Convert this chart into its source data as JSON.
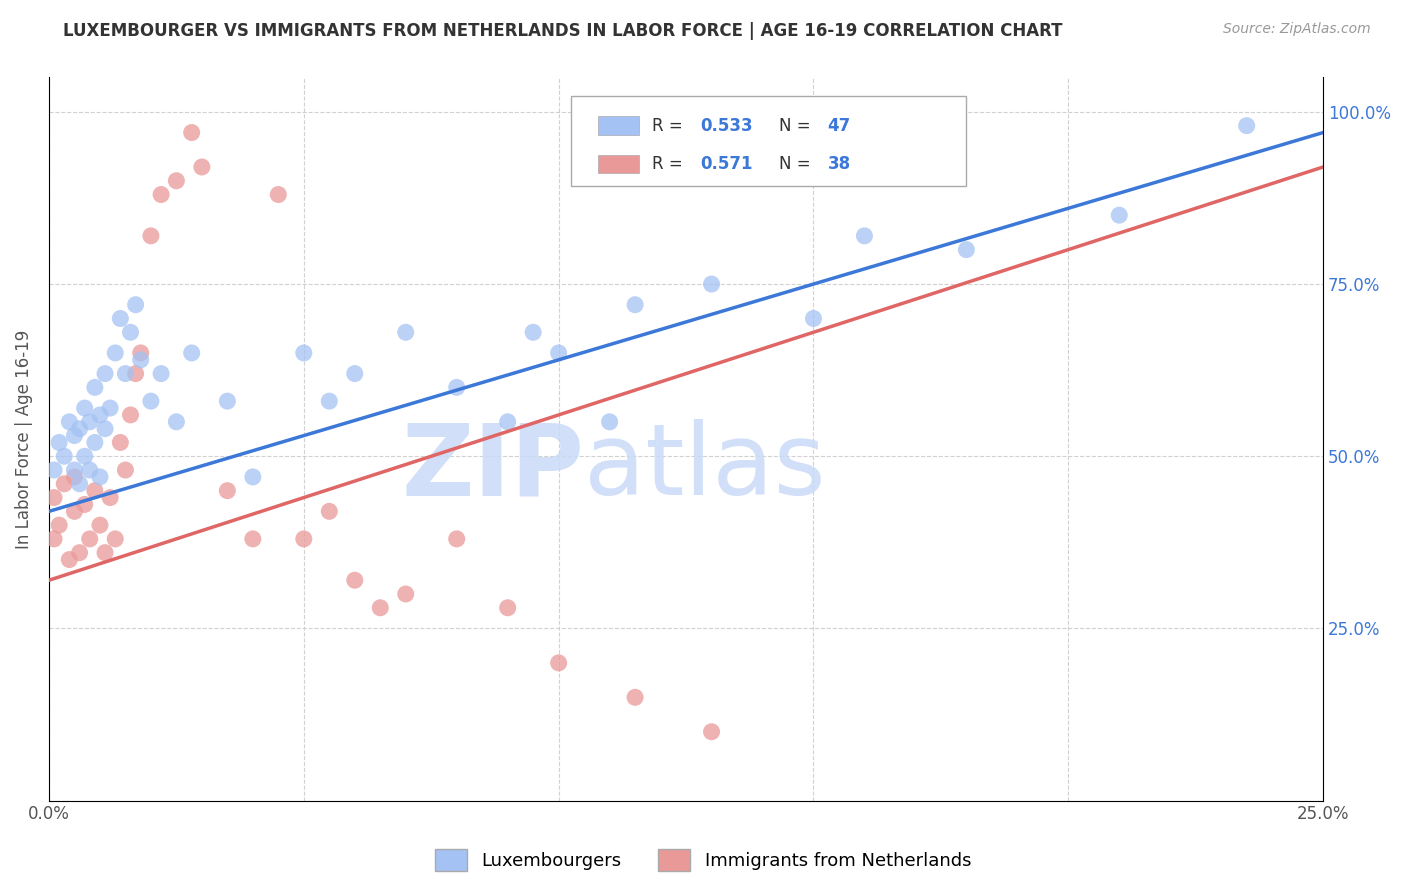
{
  "title": "LUXEMBOURGER VS IMMIGRANTS FROM NETHERLANDS IN LABOR FORCE | AGE 16-19 CORRELATION CHART",
  "source_text": "Source: ZipAtlas.com",
  "ylabel": "In Labor Force | Age 16-19",
  "xlim": [
    0.0,
    0.25
  ],
  "ylim": [
    0.0,
    1.05
  ],
  "blue_color": "#a4c2f4",
  "pink_color": "#ea9999",
  "blue_line_color": "#3c78d8",
  "pink_line_color": "#e06666",
  "legend_blue_r": "0.533",
  "legend_blue_n": "47",
  "legend_pink_r": "0.571",
  "legend_pink_n": "38",
  "r_value_color": "#3c78d8",
  "n_value_color": "#cc0000",
  "watermark_zip": "ZIP",
  "watermark_atlas": "atlas",
  "watermark_color": "#c9daf8",
  "watermark_atlas_color": "#b6d7a8",
  "blue_scatter_x": [
    0.001,
    0.002,
    0.003,
    0.004,
    0.005,
    0.005,
    0.006,
    0.006,
    0.007,
    0.007,
    0.008,
    0.008,
    0.009,
    0.009,
    0.01,
    0.01,
    0.011,
    0.011,
    0.012,
    0.013,
    0.014,
    0.015,
    0.016,
    0.017,
    0.018,
    0.02,
    0.022,
    0.025,
    0.028,
    0.035,
    0.04,
    0.05,
    0.055,
    0.06,
    0.07,
    0.08,
    0.09,
    0.095,
    0.1,
    0.11,
    0.115,
    0.13,
    0.15,
    0.16,
    0.18,
    0.21,
    0.235
  ],
  "blue_scatter_y": [
    0.48,
    0.52,
    0.5,
    0.55,
    0.48,
    0.53,
    0.46,
    0.54,
    0.5,
    0.57,
    0.48,
    0.55,
    0.52,
    0.6,
    0.47,
    0.56,
    0.54,
    0.62,
    0.57,
    0.65,
    0.7,
    0.62,
    0.68,
    0.72,
    0.64,
    0.58,
    0.62,
    0.55,
    0.65,
    0.58,
    0.47,
    0.65,
    0.58,
    0.62,
    0.68,
    0.6,
    0.55,
    0.68,
    0.65,
    0.55,
    0.72,
    0.75,
    0.7,
    0.82,
    0.8,
    0.85,
    0.98
  ],
  "pink_scatter_x": [
    0.001,
    0.001,
    0.002,
    0.003,
    0.004,
    0.005,
    0.005,
    0.006,
    0.007,
    0.008,
    0.009,
    0.01,
    0.011,
    0.012,
    0.013,
    0.014,
    0.015,
    0.016,
    0.017,
    0.018,
    0.02,
    0.022,
    0.025,
    0.028,
    0.03,
    0.035,
    0.04,
    0.045,
    0.05,
    0.055,
    0.06,
    0.065,
    0.07,
    0.08,
    0.09,
    0.1,
    0.115,
    0.13
  ],
  "pink_scatter_y": [
    0.38,
    0.44,
    0.4,
    0.46,
    0.35,
    0.42,
    0.47,
    0.36,
    0.43,
    0.38,
    0.45,
    0.4,
    0.36,
    0.44,
    0.38,
    0.52,
    0.48,
    0.56,
    0.62,
    0.65,
    0.82,
    0.88,
    0.9,
    0.97,
    0.92,
    0.45,
    0.38,
    0.88,
    0.38,
    0.42,
    0.32,
    0.28,
    0.3,
    0.38,
    0.28,
    0.2,
    0.15,
    0.1
  ],
  "blue_line_x0": 0.0,
  "blue_line_y0": 0.42,
  "blue_line_x1": 0.25,
  "blue_line_y1": 0.97,
  "pink_line_x0": 0.0,
  "pink_line_y0": 0.32,
  "pink_line_x1": 0.25,
  "pink_line_y1": 0.92,
  "figsize": [
    14.06,
    8.92
  ],
  "dpi": 100
}
